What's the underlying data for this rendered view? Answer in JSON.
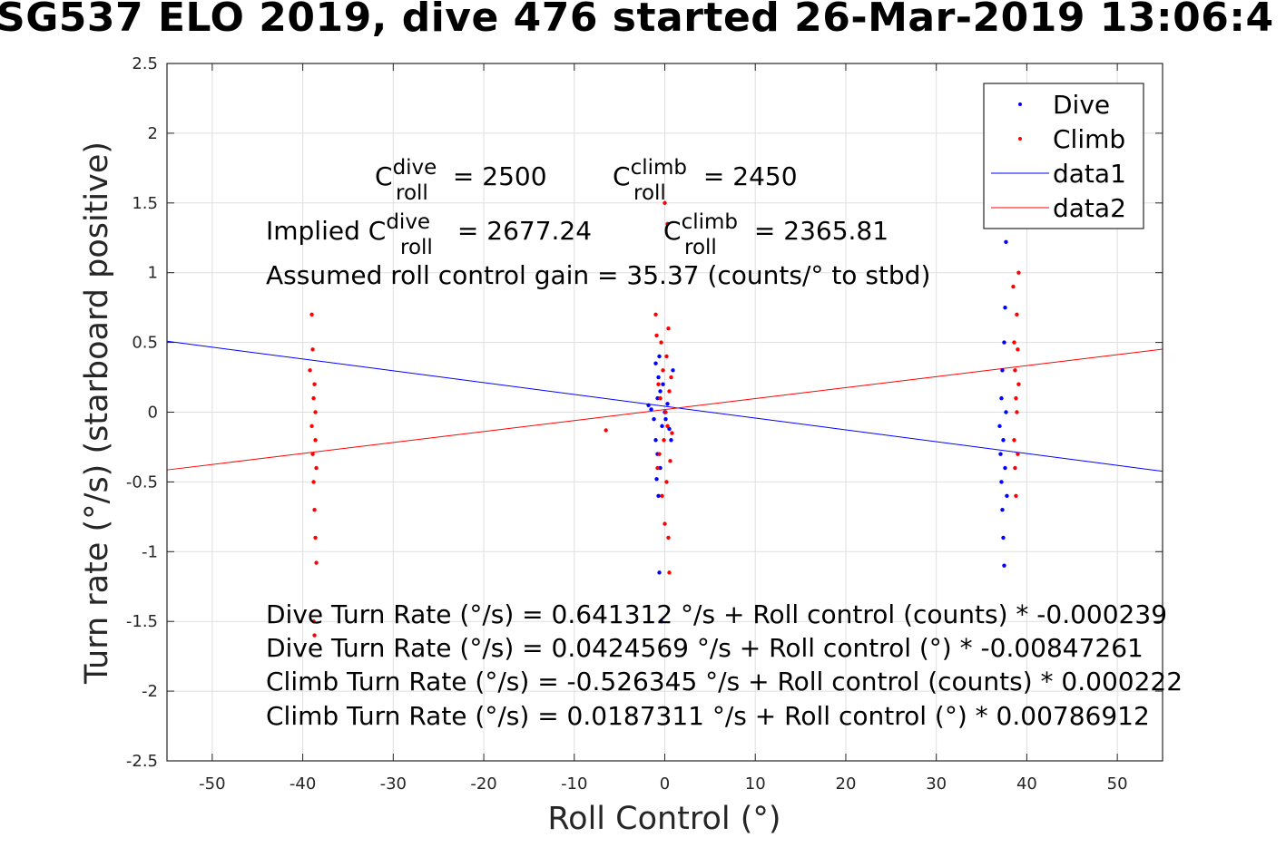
{
  "chart_data": {
    "type": "scatter",
    "title": "SG537 ELO 2019, dive 476 started 26-Mar-2019 13:06:4",
    "xlabel": "Roll Control (°)",
    "ylabel": "Turn rate (°/s) (starboard positive)",
    "xlim": [
      -55,
      55
    ],
    "ylim": [
      -2.5,
      2.5
    ],
    "grid": true,
    "legend_position": "top-right",
    "xticks": [
      -50,
      -40,
      -30,
      -20,
      -10,
      0,
      10,
      20,
      30,
      40,
      50
    ],
    "yticks": [
      -2.5,
      -2,
      -1.5,
      -1,
      -0.5,
      0,
      0.5,
      1,
      1.5,
      2,
      2.5
    ],
    "xtick_labels": [
      "-50",
      "-40",
      "-30",
      "-20",
      "-10",
      "0",
      "10",
      "20",
      "30",
      "40",
      "50"
    ],
    "ytick_labels": [
      "-2.5",
      "-2",
      "-1.5",
      "-1",
      "-0.5",
      "0",
      "0.5",
      "1",
      "1.5",
      "2",
      "2.5"
    ],
    "legend": [
      {
        "label": "Dive",
        "marker": "dot",
        "color": "#0000ff"
      },
      {
        "label": "Climb",
        "marker": "dot",
        "color": "#ff0000"
      },
      {
        "label": "data1",
        "marker": "line",
        "color": "#0000ff"
      },
      {
        "label": "data2",
        "marker": "line",
        "color": "#ff0000"
      }
    ],
    "series": [
      {
        "name": "Dive",
        "type": "scatter",
        "color": "#0000ff",
        "points": [
          [
            -1.8,
            0.05
          ],
          [
            -1.5,
            0.02
          ],
          [
            -1.2,
            -0.05
          ],
          [
            -1.0,
            0.35
          ],
          [
            -1.0,
            -0.2
          ],
          [
            -0.9,
            -0.48
          ],
          [
            -0.8,
            0.1
          ],
          [
            -0.8,
            -0.3
          ],
          [
            -0.7,
            0.25
          ],
          [
            -0.7,
            -0.6
          ],
          [
            -0.6,
            0.4
          ],
          [
            -0.6,
            -1.15
          ],
          [
            -0.5,
            0.15
          ],
          [
            -0.5,
            -0.4
          ],
          [
            -0.4,
            -1.5
          ],
          [
            -0.3,
            -0.1
          ],
          [
            -0.2,
            0.2
          ],
          [
            0.0,
            0.0
          ],
          [
            0.1,
            -0.05
          ],
          [
            0.3,
            0.06
          ],
          [
            0.5,
            -0.12
          ],
          [
            0.7,
            -0.2
          ],
          [
            0.9,
            0.3
          ],
          [
            37.0,
            -0.1
          ],
          [
            37.1,
            -0.3
          ],
          [
            37.2,
            -0.5
          ],
          [
            37.2,
            0.1
          ],
          [
            37.3,
            -0.7
          ],
          [
            37.3,
            0.3
          ],
          [
            37.4,
            -0.2
          ],
          [
            37.4,
            -0.9
          ],
          [
            37.5,
            0.5
          ],
          [
            37.5,
            -1.1
          ],
          [
            37.6,
            0.75
          ],
          [
            37.6,
            -0.4
          ],
          [
            37.7,
            1.22
          ],
          [
            37.7,
            0.0
          ],
          [
            37.8,
            -0.6
          ]
        ]
      },
      {
        "name": "Climb",
        "type": "scatter",
        "color": "#ff0000",
        "points": [
          [
            -39.2,
            0.3
          ],
          [
            -39.0,
            0.7
          ],
          [
            -39.0,
            -0.1
          ],
          [
            -38.9,
            0.45
          ],
          [
            -38.9,
            -0.3
          ],
          [
            -38.8,
            0.1
          ],
          [
            -38.8,
            -0.5
          ],
          [
            -38.7,
            -0.7
          ],
          [
            -38.7,
            0.2
          ],
          [
            -38.6,
            -0.9
          ],
          [
            -38.6,
            -0.2
          ],
          [
            -38.5,
            -1.08
          ],
          [
            -38.5,
            -0.4
          ],
          [
            -38.8,
            -1.5
          ],
          [
            -38.7,
            -1.6
          ],
          [
            -38.6,
            0.0
          ],
          [
            -6.5,
            -0.13
          ],
          [
            -1.0,
            0.7
          ],
          [
            -0.9,
            0.55
          ],
          [
            -0.8,
            -0.4
          ],
          [
            -0.7,
            0.2
          ],
          [
            -0.6,
            -0.3
          ],
          [
            -0.5,
            0.1
          ],
          [
            -0.4,
            0.5
          ],
          [
            -0.3,
            -0.6
          ],
          [
            -0.2,
            0.3
          ],
          [
            -0.1,
            -0.2
          ],
          [
            0.0,
            1.5
          ],
          [
            0.0,
            -0.8
          ],
          [
            0.1,
            0.0
          ],
          [
            0.2,
            0.4
          ],
          [
            0.2,
            -0.5
          ],
          [
            0.3,
            1.35
          ],
          [
            0.3,
            -0.1
          ],
          [
            0.4,
            0.6
          ],
          [
            0.4,
            -0.9
          ],
          [
            0.5,
            0.15
          ],
          [
            0.5,
            -1.15
          ],
          [
            0.6,
            -0.35
          ],
          [
            0.7,
            0.25
          ],
          [
            0.8,
            -0.15
          ],
          [
            38.5,
            0.9
          ],
          [
            38.6,
            0.5
          ],
          [
            38.6,
            -0.2
          ],
          [
            38.7,
            0.3
          ],
          [
            38.7,
            -0.4
          ],
          [
            38.8,
            0.1
          ],
          [
            38.8,
            -0.6
          ],
          [
            38.9,
            0.7
          ],
          [
            38.9,
            0.0
          ],
          [
            39.0,
            -0.3
          ],
          [
            39.0,
            0.45
          ],
          [
            39.1,
            0.2
          ],
          [
            39.1,
            1.0
          ]
        ]
      }
    ],
    "fit_lines": [
      {
        "name": "data1",
        "color": "#0000ff",
        "intercept": 0.0424569,
        "slope": -0.00847261
      },
      {
        "name": "data2",
        "color": "#ff0000",
        "intercept": 0.0187311,
        "slope": 0.00786912
      }
    ],
    "annotations": {
      "c_roll_dive": {
        "base": "C",
        "sup": "dive",
        "sub": "roll",
        "text": " = 2500"
      },
      "c_roll_climb": {
        "base": "C",
        "sup": "climb",
        "sub": "roll",
        "text": " = 2450"
      },
      "implied_dive": {
        "prefix": "Implied C",
        "sup": "dive",
        "sub": "roll",
        "text": " = 2677.24"
      },
      "implied_climb": {
        "base": "C",
        "sup": "climb",
        "sub": "roll",
        "text": " = 2365.81"
      },
      "gain": "Assumed roll control gain = 35.37 (counts/° to stbd)",
      "dive_counts": "Dive Turn Rate (°/s) = 0.641312 °/s + Roll control (counts) * -0.000239",
      "dive_deg": "Dive Turn Rate (°/s) = 0.0424569 °/s + Roll control (°) * -0.00847261",
      "climb_counts": "Climb Turn Rate (°/s) = -0.526345 °/s + Roll control (counts) * 0.000222",
      "climb_deg": "Climb Turn Rate (°/s) = 0.0187311 °/s + Roll control (°) * 0.00786912"
    }
  }
}
